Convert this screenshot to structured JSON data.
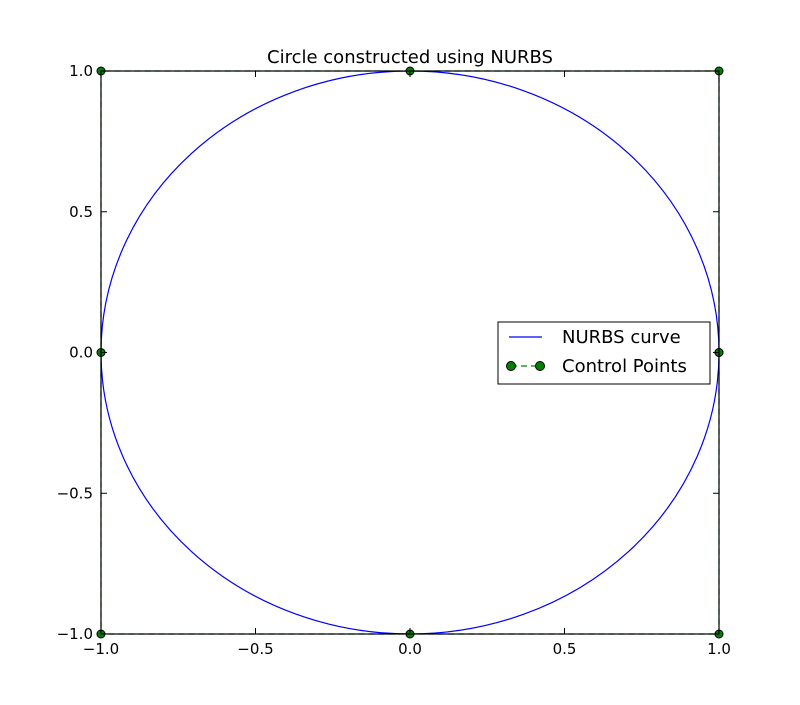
{
  "chart_data": {
    "type": "line",
    "title": "Circle constructed using NURBS",
    "xlabel": "",
    "ylabel": "",
    "xlim": [
      -1.0,
      1.0
    ],
    "ylim": [
      -1.0,
      1.0
    ],
    "grid": false,
    "legend_position": "center-right",
    "x_ticks": [
      {
        "value": -1.0,
        "label": "−1.0"
      },
      {
        "value": -0.5,
        "label": "−0.5"
      },
      {
        "value": 0.0,
        "label": "0.0"
      },
      {
        "value": 0.5,
        "label": "0.5"
      },
      {
        "value": 1.0,
        "label": "1.0"
      }
    ],
    "y_ticks": [
      {
        "value": -1.0,
        "label": "−1.0"
      },
      {
        "value": -0.5,
        "label": "−0.5"
      },
      {
        "value": 0.0,
        "label": "0.0"
      },
      {
        "value": 0.5,
        "label": "0.5"
      },
      {
        "value": 1.0,
        "label": "1.0"
      }
    ],
    "series": [
      {
        "name": "NURBS curve",
        "kind": "curve",
        "shape": "circle",
        "center": [
          0.0,
          0.0
        ],
        "radius": 1.0,
        "color": "#0000ff"
      },
      {
        "name": "Control Points",
        "kind": "line-markers",
        "linestyle": "dashed",
        "marker": "circle",
        "color": "#008000",
        "x": [
          1.0,
          1.0,
          0.0,
          -1.0,
          -1.0,
          -1.0,
          0.0,
          1.0,
          1.0
        ],
        "y": [
          0.0,
          1.0,
          1.0,
          1.0,
          0.0,
          -1.0,
          -1.0,
          -1.0,
          0.0
        ]
      }
    ]
  }
}
